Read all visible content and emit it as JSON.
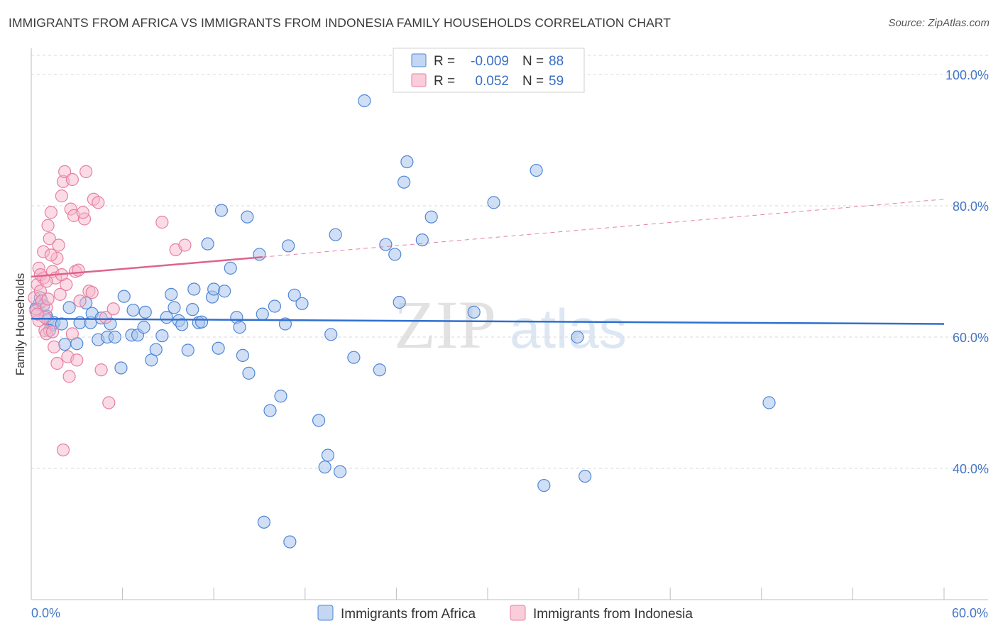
{
  "header": {
    "title": "IMMIGRANTS FROM AFRICA VS IMMIGRANTS FROM INDONESIA FAMILY HOUSEHOLDS CORRELATION CHART",
    "source": "Source: ZipAtlas.com"
  },
  "colors": {
    "africa_fill": "#a9c4ec",
    "africa_stroke": "#4f86d6",
    "africa_line": "#2f6fd0",
    "indonesia_fill": "#f7b8cb",
    "indonesia_stroke": "#e77fa0",
    "indonesia_line": "#e0628e",
    "axis_text": "#4477c4",
    "grid": "#d9d9d9"
  },
  "watermark": {
    "zip": "ZIP",
    "atlas": "atlas"
  },
  "legend": {
    "r_label": "R =",
    "n_label": "N =",
    "africa": {
      "r": "-0.009",
      "n": "88"
    },
    "indonesia": {
      "r": "0.052",
      "n": "59"
    }
  },
  "chart_data": {
    "type": "scatter",
    "title": "IMMIGRANTS FROM AFRICA VS IMMIGRANTS FROM INDONESIA FAMILY HOUSEHOLDS CORRELATION CHART",
    "xlabel": "",
    "ylabel": "Family Households",
    "xlim": [
      0,
      60
    ],
    "ylim": [
      20,
      104
    ],
    "x_tick_labels": [
      "0.0%",
      "60.0%"
    ],
    "y_ticks": [
      {
        "value": 100,
        "label": "100.0%"
      },
      {
        "value": 80,
        "label": "80.0%"
      },
      {
        "value": 60,
        "label": "60.0%"
      },
      {
        "value": 40,
        "label": "40.0%"
      }
    ],
    "grid": true,
    "series": [
      {
        "name": "Immigrants from Africa",
        "trend": {
          "x0": 0,
          "y0": 62.8,
          "x1": 60,
          "y1": 62.0
        },
        "points": [
          [
            0.5,
            65.0
          ],
          [
            0.6,
            66.0
          ],
          [
            0.8,
            64.8
          ],
          [
            1.0,
            63.2
          ],
          [
            1.1,
            62.6
          ],
          [
            1.4,
            61.9
          ],
          [
            1.5,
            62.2
          ],
          [
            2.0,
            62.0
          ],
          [
            2.2,
            58.9
          ],
          [
            2.5,
            64.5
          ],
          [
            3.0,
            59.0
          ],
          [
            3.2,
            62.2
          ],
          [
            3.6,
            65.2
          ],
          [
            3.9,
            62.2
          ],
          [
            4.0,
            63.6
          ],
          [
            4.4,
            59.6
          ],
          [
            4.6,
            62.9
          ],
          [
            5.0,
            60.0
          ],
          [
            5.2,
            62.0
          ],
          [
            5.5,
            60.0
          ],
          [
            5.9,
            55.3
          ],
          [
            6.1,
            66.2
          ],
          [
            6.6,
            60.3
          ],
          [
            6.7,
            64.1
          ],
          [
            7.0,
            60.3
          ],
          [
            7.4,
            61.5
          ],
          [
            7.5,
            63.8
          ],
          [
            7.9,
            56.5
          ],
          [
            8.2,
            58.1
          ],
          [
            8.6,
            60.2
          ],
          [
            8.9,
            63.0
          ],
          [
            9.2,
            66.5
          ],
          [
            9.4,
            64.5
          ],
          [
            9.7,
            62.5
          ],
          [
            9.9,
            61.9
          ],
          [
            10.3,
            58.0
          ],
          [
            10.6,
            64.2
          ],
          [
            10.7,
            67.3
          ],
          [
            11.0,
            62.2
          ],
          [
            11.2,
            62.3
          ],
          [
            11.6,
            74.2
          ],
          [
            11.9,
            66.1
          ],
          [
            12.0,
            67.3
          ],
          [
            12.3,
            58.3
          ],
          [
            12.5,
            79.3
          ],
          [
            12.7,
            67.0
          ],
          [
            13.1,
            70.5
          ],
          [
            13.5,
            63.0
          ],
          [
            13.7,
            61.5
          ],
          [
            13.9,
            57.2
          ],
          [
            14.2,
            78.3
          ],
          [
            14.3,
            54.5
          ],
          [
            15.0,
            72.6
          ],
          [
            15.2,
            63.5
          ],
          [
            15.7,
            48.8
          ],
          [
            16.0,
            64.7
          ],
          [
            16.4,
            51.0
          ],
          [
            16.7,
            62.0
          ],
          [
            16.9,
            73.9
          ],
          [
            17.3,
            66.4
          ],
          [
            17.8,
            65.1
          ],
          [
            18.9,
            47.3
          ],
          [
            19.3,
            40.2
          ],
          [
            19.5,
            42.0
          ],
          [
            19.7,
            60.4
          ],
          [
            20.0,
            75.6
          ],
          [
            20.3,
            39.5
          ],
          [
            21.2,
            56.9
          ],
          [
            21.9,
            96.0
          ],
          [
            22.9,
            55.0
          ],
          [
            23.3,
            74.1
          ],
          [
            23.9,
            72.6
          ],
          [
            24.2,
            65.3
          ],
          [
            24.5,
            83.6
          ],
          [
            24.7,
            86.7
          ],
          [
            25.7,
            74.8
          ],
          [
            26.3,
            78.3
          ],
          [
            29.1,
            63.8
          ],
          [
            30.4,
            80.5
          ],
          [
            33.2,
            85.4
          ],
          [
            33.7,
            37.4
          ],
          [
            35.9,
            60.0
          ],
          [
            36.4,
            38.8
          ],
          [
            48.5,
            50.0
          ],
          [
            15.3,
            31.8
          ],
          [
            17.0,
            28.8
          ],
          [
            0.3,
            64.3
          ],
          [
            1.2,
            61.0
          ]
        ]
      },
      {
        "name": "Immigrants from Indonesia",
        "trend": {
          "x0": 0,
          "y0": 69.2,
          "x1": 60,
          "y1": 81.0,
          "solid_until_x": 15.2
        },
        "points": [
          [
            0.2,
            66.0
          ],
          [
            0.3,
            64.0
          ],
          [
            0.4,
            68.0
          ],
          [
            0.5,
            62.5
          ],
          [
            0.5,
            70.5
          ],
          [
            0.6,
            67.0
          ],
          [
            0.7,
            65.5
          ],
          [
            0.8,
            69.0
          ],
          [
            0.8,
            73.0
          ],
          [
            0.9,
            61.0
          ],
          [
            1.0,
            60.5
          ],
          [
            1.1,
            77.0
          ],
          [
            1.2,
            75.0
          ],
          [
            1.3,
            79.0
          ],
          [
            1.4,
            70.0
          ],
          [
            1.5,
            58.5
          ],
          [
            1.6,
            69.0
          ],
          [
            1.7,
            72.0
          ],
          [
            1.8,
            74.0
          ],
          [
            1.9,
            66.5
          ],
          [
            2.0,
            81.5
          ],
          [
            2.1,
            83.7
          ],
          [
            2.2,
            85.2
          ],
          [
            2.3,
            68.0
          ],
          [
            2.4,
            57.0
          ],
          [
            2.5,
            54.0
          ],
          [
            2.6,
            79.5
          ],
          [
            2.7,
            60.5
          ],
          [
            2.8,
            78.5
          ],
          [
            2.9,
            70.0
          ],
          [
            3.0,
            56.5
          ],
          [
            3.2,
            65.5
          ],
          [
            3.5,
            78.0
          ],
          [
            3.6,
            85.2
          ],
          [
            3.8,
            67.0
          ],
          [
            4.1,
            81.0
          ],
          [
            4.4,
            80.5
          ],
          [
            4.6,
            55.0
          ],
          [
            4.9,
            63.0
          ],
          [
            5.1,
            50.0
          ],
          [
            5.4,
            64.3
          ],
          [
            8.6,
            77.5
          ],
          [
            9.5,
            73.3
          ],
          [
            10.1,
            74.0
          ],
          [
            1.0,
            64.5
          ],
          [
            1.4,
            60.8
          ],
          [
            1.7,
            56.0
          ],
          [
            0.9,
            63.0
          ],
          [
            1.3,
            72.5
          ],
          [
            2.0,
            69.5
          ],
          [
            0.6,
            69.5
          ],
          [
            1.0,
            68.5
          ],
          [
            1.1,
            65.8
          ],
          [
            2.1,
            42.8
          ],
          [
            3.1,
            70.2
          ],
          [
            3.4,
            79.0
          ],
          [
            2.7,
            84.0
          ],
          [
            4.0,
            66.8
          ],
          [
            0.4,
            63.5
          ]
        ]
      }
    ]
  },
  "bottom_legend": {
    "africa_label": "Immigrants from Africa",
    "indonesia_label": "Immigrants from Indonesia"
  }
}
